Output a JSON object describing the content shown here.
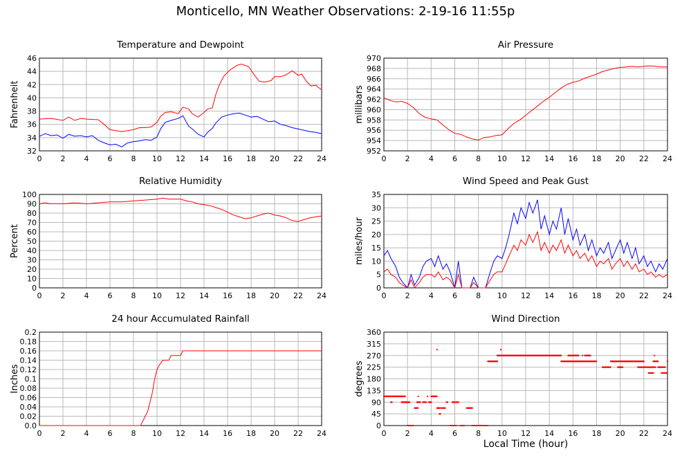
{
  "title": "Monticello, MN Weather Observations: 2-19-16 11:55p",
  "shared_xlabel": "Local Time (hour)",
  "colors": {
    "red": "#ff0000",
    "blue": "#0000ff",
    "grid": "#b8b8b8"
  },
  "chart_data": [
    {
      "id": "temp",
      "type": "line",
      "title": "Temperature and Dewpoint",
      "ylabel": "Fahrenheit",
      "xlim": [
        0,
        24
      ],
      "ylim": [
        32,
        46
      ],
      "xticks": [
        0,
        2,
        4,
        6,
        8,
        10,
        12,
        14,
        16,
        18,
        20,
        22,
        24
      ],
      "yticks": [
        32,
        34,
        36,
        38,
        40,
        42,
        44,
        46
      ],
      "series": [
        {
          "color": "#ff0000",
          "x": [
            0,
            1,
            2,
            2.5,
            3,
            3.5,
            4,
            5,
            5.5,
            6,
            7,
            8,
            8.5,
            9,
            9.5,
            10,
            10.3,
            10.7,
            11.2,
            11.8,
            12.2,
            12.7,
            13,
            13.5,
            14,
            14.3,
            14.7,
            15,
            15.3,
            15.7,
            16.2,
            16.8,
            17.2,
            17.8,
            18.3,
            18.7,
            19.2,
            19.7,
            20,
            20.5,
            21,
            21.5,
            22,
            22.3,
            22.7,
            23.1,
            23.5,
            24
          ],
          "y": [
            36.8,
            36.9,
            36.6,
            37.1,
            36.6,
            36.9,
            36.8,
            36.7,
            36,
            35.2,
            34.9,
            35.2,
            35.5,
            35.5,
            35.6,
            36.3,
            37.2,
            37.8,
            37.9,
            37.6,
            38.6,
            38.3,
            37.6,
            37.1,
            37.8,
            38.3,
            38.5,
            40.5,
            42,
            43.3,
            44.2,
            44.9,
            45.1,
            44.7,
            43.4,
            42.5,
            42.4,
            42.6,
            43.2,
            43.2,
            43.5,
            44.1,
            43.4,
            43.6,
            42.5,
            41.8,
            41.9,
            41.2
          ]
        },
        {
          "color": "#0000ff",
          "x": [
            0,
            0.5,
            1,
            1.5,
            2,
            2.5,
            3,
            3.5,
            4,
            4.5,
            5,
            5.5,
            6,
            6.5,
            7,
            7.5,
            8,
            8.5,
            9,
            9.5,
            10,
            10.3,
            10.7,
            11.2,
            11.8,
            12.2,
            12.7,
            13,
            13.5,
            14,
            14.3,
            14.7,
            15,
            15.5,
            16,
            16.5,
            17,
            17.5,
            18,
            18.5,
            19,
            19.5,
            20,
            20.5,
            21,
            21.5,
            22,
            22.5,
            23,
            23.5,
            24
          ],
          "y": [
            34.2,
            34.6,
            34.3,
            34.4,
            33.9,
            34.5,
            34.2,
            34.3,
            34.1,
            34.3,
            33.6,
            33.2,
            32.9,
            33,
            32.6,
            33.2,
            33.4,
            33.5,
            33.7,
            33.6,
            34.1,
            35.3,
            36.3,
            36.6,
            36.9,
            37.3,
            35.7,
            35.3,
            34.5,
            34.1,
            34.8,
            35.4,
            36.2,
            37.1,
            37.4,
            37.6,
            37.7,
            37.4,
            37.1,
            37.2,
            36.8,
            36.4,
            36.5,
            36,
            35.8,
            35.5,
            35.3,
            35.1,
            34.9,
            34.8,
            34.6
          ]
        }
      ]
    },
    {
      "id": "pressure",
      "type": "line",
      "title": "Air Pressure",
      "ylabel": "millibars",
      "xlim": [
        0,
        24
      ],
      "ylim": [
        952,
        970
      ],
      "xticks": [
        0,
        2,
        4,
        6,
        8,
        10,
        12,
        14,
        16,
        18,
        20,
        22,
        24
      ],
      "yticks": [
        952,
        954,
        956,
        958,
        960,
        962,
        964,
        966,
        968,
        970
      ],
      "series": [
        {
          "color": "#ff0000",
          "x": [
            0,
            0.5,
            1,
            1.5,
            2,
            2.5,
            3,
            3.5,
            4,
            4.5,
            5,
            5.5,
            6,
            6.5,
            7,
            7.5,
            8,
            8.5,
            9,
            9.5,
            10,
            10.5,
            11,
            11.5,
            12,
            12.5,
            13,
            13.5,
            14,
            14.5,
            15,
            15.5,
            16,
            16.5,
            17,
            17.5,
            18,
            18.5,
            19,
            19.5,
            20,
            20.5,
            21,
            21.5,
            22,
            22.5,
            23,
            23.5,
            24
          ],
          "y": [
            962.3,
            961.8,
            961.5,
            961.6,
            961.2,
            960.4,
            959.2,
            958.5,
            958.2,
            958.0,
            957.0,
            956.1,
            955.4,
            955.2,
            954.7,
            954.3,
            954.1,
            954.6,
            954.7,
            955.0,
            955.1,
            956.3,
            957.3,
            958.0,
            958.9,
            959.8,
            960.7,
            961.6,
            962.4,
            963.3,
            964.2,
            964.9,
            965.3,
            965.6,
            966.1,
            966.5,
            966.9,
            967.4,
            967.7,
            968.0,
            968.2,
            968.3,
            968.4,
            968.3,
            968.4,
            968.5,
            968.4,
            968.3,
            968.3
          ]
        }
      ]
    },
    {
      "id": "humidity",
      "type": "line",
      "title": "Relative Humidity",
      "ylabel": "Percent",
      "xlim": [
        0,
        24
      ],
      "ylim": [
        0,
        100
      ],
      "xticks": [
        0,
        2,
        4,
        6,
        8,
        10,
        12,
        14,
        16,
        18,
        20,
        22,
        24
      ],
      "yticks": [
        0,
        10,
        20,
        30,
        40,
        50,
        60,
        70,
        80,
        90,
        100
      ],
      "series": [
        {
          "color": "#ff0000",
          "x": [
            0,
            0.5,
            1,
            2,
            3,
            4,
            5,
            6,
            7,
            8,
            9,
            10,
            10.5,
            11,
            11.5,
            12,
            12.5,
            13,
            13.5,
            14,
            14.5,
            15,
            15.5,
            16,
            16.5,
            17,
            17.5,
            18,
            18.5,
            19,
            19.5,
            20,
            20.5,
            21,
            21.5,
            22,
            22.5,
            23,
            23.5,
            24
          ],
          "y": [
            90,
            91,
            90,
            90,
            91,
            90,
            91,
            92,
            92,
            93,
            94,
            95,
            96,
            95,
            95,
            95,
            93,
            92,
            90,
            89,
            88,
            86,
            84,
            81,
            78,
            76,
            74,
            75,
            77,
            79,
            80,
            78,
            77,
            75,
            72,
            71,
            73,
            75,
            76,
            77
          ]
        }
      ]
    },
    {
      "id": "wind",
      "type": "line",
      "title": "Wind Speed and Peak Gust",
      "ylabel": "miles/hour",
      "xlim": [
        0,
        24
      ],
      "ylim": [
        0,
        35
      ],
      "xticks": [
        0,
        2,
        4,
        6,
        8,
        10,
        12,
        14,
        16,
        18,
        20,
        22,
        24
      ],
      "yticks": [
        0,
        5,
        10,
        15,
        20,
        25,
        30,
        35
      ],
      "series": [
        {
          "color": "#0000ff",
          "x": [
            0,
            0.3,
            0.6,
            1,
            1.3,
            1.6,
            2,
            2.3,
            2.6,
            3,
            3.3,
            3.6,
            4,
            4.3,
            4.6,
            5,
            5.3,
            5.6,
            6,
            6.3,
            6.6,
            7,
            7.3,
            7.6,
            8,
            8.3,
            8.6,
            9,
            9.3,
            9.6,
            10,
            10.3,
            10.6,
            11,
            11.3,
            11.6,
            12,
            12.3,
            12.6,
            13,
            13.3,
            13.6,
            14,
            14.3,
            14.6,
            15,
            15.3,
            15.6,
            16,
            16.3,
            16.6,
            17,
            17.3,
            17.6,
            18,
            18.3,
            18.6,
            19,
            19.3,
            19.6,
            20,
            20.3,
            20.6,
            21,
            21.3,
            21.6,
            22,
            22.3,
            22.6,
            23,
            23.3,
            23.6,
            24
          ],
          "y": [
            12,
            14,
            11,
            8,
            4,
            2,
            0,
            5,
            1,
            4,
            8,
            10,
            11,
            8,
            12,
            7,
            9,
            6,
            0,
            10,
            0,
            0,
            0,
            4,
            0,
            0,
            0,
            6,
            10,
            12,
            11,
            15,
            20,
            28,
            24,
            30,
            26,
            32,
            28,
            33,
            22,
            27,
            20,
            25,
            22,
            30,
            20,
            26,
            18,
            22,
            16,
            20,
            14,
            18,
            12,
            15,
            13,
            17,
            11,
            14,
            18,
            13,
            17,
            11,
            15,
            9,
            12,
            8,
            10,
            6,
            9,
            7,
            11
          ]
        },
        {
          "color": "#ff0000",
          "x": [
            0,
            0.3,
            0.6,
            1,
            1.3,
            1.6,
            2,
            2.3,
            2.6,
            3,
            3.3,
            3.6,
            4,
            4.3,
            4.6,
            5,
            5.3,
            5.6,
            6,
            6.3,
            6.6,
            7,
            7.3,
            7.6,
            8,
            8.3,
            8.6,
            9,
            9.3,
            9.6,
            10,
            10.3,
            10.6,
            11,
            11.3,
            11.6,
            12,
            12.3,
            12.6,
            13,
            13.3,
            13.6,
            14,
            14.3,
            14.6,
            15,
            15.3,
            15.6,
            16,
            16.3,
            16.6,
            17,
            17.3,
            17.6,
            18,
            18.3,
            18.6,
            19,
            19.3,
            19.6,
            20,
            20.3,
            20.6,
            21,
            21.3,
            21.6,
            22,
            22.3,
            22.6,
            23,
            23.3,
            23.6,
            24
          ],
          "y": [
            6,
            7,
            5,
            4,
            2,
            1,
            0,
            3,
            0,
            2,
            4,
            5,
            5,
            4,
            6,
            3,
            4,
            3,
            0,
            5,
            0,
            0,
            0,
            2,
            0,
            0,
            0,
            3,
            5,
            6,
            6,
            9,
            12,
            16,
            14,
            18,
            16,
            20,
            17,
            21,
            14,
            17,
            13,
            16,
            14,
            18,
            13,
            16,
            12,
            14,
            11,
            13,
            10,
            12,
            8,
            10,
            9,
            11,
            7,
            9,
            11,
            8,
            10,
            7,
            9,
            6,
            7,
            5,
            6,
            4,
            5,
            4,
            5
          ]
        }
      ]
    },
    {
      "id": "rain",
      "type": "line",
      "title": "24 hour Accumulated Rainfall",
      "ylabel": "Inches",
      "xlim": [
        0,
        24
      ],
      "ylim": [
        0,
        0.2
      ],
      "xticks": [
        0,
        2,
        4,
        6,
        8,
        10,
        12,
        14,
        16,
        18,
        20,
        22,
        24
      ],
      "yticks": [
        0.0,
        0.02,
        0.04,
        0.06,
        0.08,
        0.1,
        0.12,
        0.14,
        0.16,
        0.18,
        0.2
      ],
      "ytick_labels": [
        "0.0",
        "0.02",
        "0.04",
        "0.06",
        "0.08",
        "0.1",
        "0.12",
        "0.14",
        "0.16",
        "0.18",
        "0.2"
      ],
      "series": [
        {
          "color": "#ff0000",
          "x": [
            0,
            8.6,
            8.8,
            9.0,
            9.2,
            9.4,
            9.6,
            9.8,
            10.0,
            10.2,
            10.5,
            11.0,
            11.2,
            12.0,
            12.2,
            24
          ],
          "y": [
            0,
            0,
            0.01,
            0.02,
            0.03,
            0.05,
            0.07,
            0.1,
            0.12,
            0.13,
            0.14,
            0.14,
            0.15,
            0.15,
            0.16,
            0.16
          ]
        }
      ]
    },
    {
      "id": "direction",
      "type": "scatter",
      "title": "Wind Direction",
      "ylabel": "degrees",
      "xlim": [
        0,
        24
      ],
      "ylim": [
        0,
        360
      ],
      "xticks": [
        0,
        2,
        4,
        6,
        8,
        10,
        12,
        14,
        16,
        18,
        20,
        22,
        24
      ],
      "yticks": [
        0,
        45,
        90,
        135,
        180,
        225,
        270,
        315,
        360
      ],
      "series": [
        {
          "color": "#ff0000",
          "segments": [
            [
              0,
              1.8,
              112.5
            ],
            [
              0.6,
              0.7,
              90
            ],
            [
              1.5,
              2.2,
              90
            ],
            [
              2.0,
              2.5,
              0
            ],
            [
              2.6,
              2.9,
              67.5
            ],
            [
              2.8,
              3.1,
              90
            ],
            [
              3.3,
              3.6,
              90
            ],
            [
              3.8,
              4.0,
              90
            ],
            [
              4.0,
              4.5,
              112.5
            ],
            [
              4.5,
              4.8,
              67.5
            ],
            [
              4.7,
              4.8,
              45
            ],
            [
              4.9,
              5.2,
              67.5
            ],
            [
              5.3,
              5.4,
              90
            ],
            [
              5.6,
              6.1,
              0
            ],
            [
              5.8,
              6.0,
              90
            ],
            [
              6.1,
              6.3,
              90
            ],
            [
              6.5,
              6.8,
              0
            ],
            [
              7.0,
              7.5,
              67.5
            ],
            [
              7.5,
              8.8,
              0
            ],
            [
              8.8,
              9.6,
              247.5
            ],
            [
              9.6,
              15.0,
              270
            ],
            [
              15.0,
              16.5,
              247.5
            ],
            [
              15.6,
              16.5,
              270
            ],
            [
              16.5,
              18.0,
              247.5
            ],
            [
              17.0,
              17.5,
              270
            ],
            [
              18.5,
              19.2,
              225
            ],
            [
              19.2,
              22.0,
              247.5
            ],
            [
              19.8,
              20.2,
              225
            ],
            [
              21.5,
              23.0,
              225
            ],
            [
              22.4,
              22.8,
              202.5
            ],
            [
              22.8,
              23.2,
              247.5
            ],
            [
              23.2,
              23.8,
              225
            ],
            [
              23.5,
              24,
              202.5
            ]
          ],
          "points": [
            [
              2.9,
              112.5
            ],
            [
              3.7,
              112.5
            ],
            [
              4.5,
              292.5
            ],
            [
              9.9,
              292.5
            ],
            [
              16.8,
              270
            ],
            [
              22.9,
              270
            ],
            [
              24,
              247.5
            ]
          ]
        }
      ]
    }
  ]
}
